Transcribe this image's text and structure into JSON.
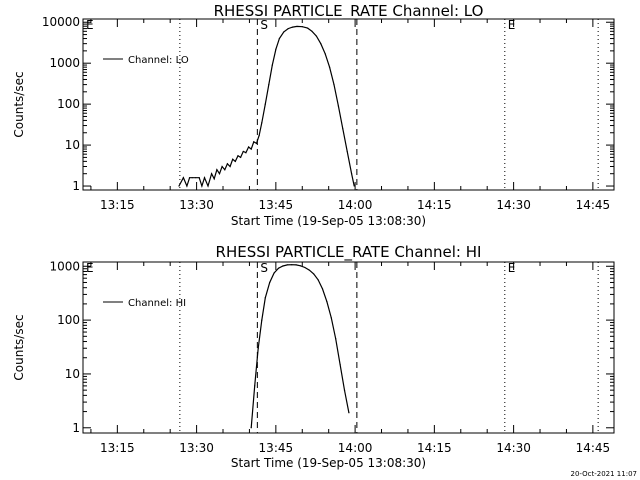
{
  "footer": {
    "timestamp": "20-Oct-2021 11:07"
  },
  "chart_data": [
    {
      "type": "line",
      "title": "RHESSI PARTICLE_RATE Channel: LO",
      "xlabel": "Start Time (19-Sep-05 13:08:30)",
      "ylabel": "Counts/sec",
      "yscale": "log",
      "xlim": [
        "13:08:30",
        "14:49:00"
      ],
      "ylim": [
        0.8,
        12000
      ],
      "xticks": [
        "13:15",
        "13:30",
        "13:45",
        "14:00",
        "14:15",
        "14:30",
        "14:45"
      ],
      "yticks": [
        1,
        10,
        100,
        1000,
        10000
      ],
      "ytick_labels": [
        "1",
        "10",
        "100",
        "1000",
        "10000"
      ],
      "legend_position": "top-left",
      "series": [
        {
          "name": "Channel: LO",
          "x": [
            "13:26:40",
            "13:27:30",
            "13:28:10",
            "13:28:40",
            "13:29:10",
            "13:29:50",
            "13:30:30",
            "13:31:00",
            "13:31:30",
            "13:32:10",
            "13:32:50",
            "13:33:20",
            "13:33:50",
            "13:34:20",
            "13:34:50",
            "13:35:20",
            "13:35:50",
            "13:36:20",
            "13:36:50",
            "13:37:20",
            "13:37:50",
            "13:38:20",
            "13:38:50",
            "13:39:20",
            "13:39:50",
            "13:40:20",
            "13:40:50",
            "13:41:20",
            "13:41:50",
            "13:42:20",
            "13:43:00",
            "13:43:40",
            "13:44:20",
            "13:45:00",
            "13:45:40",
            "13:46:30",
            "13:47:20",
            "13:48:10",
            "13:49:00",
            "13:50:00",
            "13:51:00",
            "13:51:50",
            "13:52:40",
            "13:53:30",
            "13:54:20",
            "13:55:10",
            "13:56:00",
            "13:56:50",
            "13:57:40",
            "13:58:30",
            "13:59:20",
            "13:59:50"
          ],
          "values": [
            1,
            1.6,
            1,
            1.6,
            1.6,
            1.6,
            1.6,
            1,
            1.6,
            1,
            2,
            1.5,
            2.5,
            2,
            3,
            2.5,
            3.5,
            3,
            4.5,
            4,
            5.5,
            5,
            7,
            6.5,
            9,
            8,
            12,
            11,
            17,
            35,
            100,
            300,
            900,
            2200,
            4000,
            5800,
            7000,
            7600,
            7900,
            7800,
            7200,
            6000,
            4600,
            3000,
            1700,
            800,
            300,
            90,
            25,
            7,
            2,
            1
          ]
        }
      ],
      "vertical_markers": [
        {
          "time": "13:41:30",
          "style": "dashed",
          "label": "S"
        },
        {
          "time": "14:00:20",
          "style": "dashed",
          "label": ""
        },
        {
          "time": "13:08:30",
          "style": "dotted",
          "label": "E"
        },
        {
          "time": "13:26:50",
          "style": "dotted",
          "label": ""
        },
        {
          "time": "14:28:20",
          "style": "dotted",
          "label": "E"
        },
        {
          "time": "14:46:00",
          "style": "dotted",
          "label": ""
        }
      ]
    },
    {
      "type": "line",
      "title": "RHESSI PARTICLE_RATE Channel: HI",
      "xlabel": "Start Time (19-Sep-05 13:08:30)",
      "ylabel": "Counts/sec",
      "yscale": "log",
      "xlim": [
        "13:08:30",
        "14:49:00"
      ],
      "ylim": [
        0.8,
        1200
      ],
      "xticks": [
        "13:15",
        "13:30",
        "13:45",
        "14:00",
        "14:15",
        "14:30",
        "14:45"
      ],
      "yticks": [
        1,
        10,
        100,
        1000
      ],
      "ytick_labels": [
        "1",
        "10",
        "100",
        "1000"
      ],
      "legend_position": "top-left",
      "series": [
        {
          "name": "Channel: HI",
          "x": [
            "13:40:20",
            "13:41:00",
            "13:41:40",
            "13:42:20",
            "13:43:00",
            "13:43:50",
            "13:44:40",
            "13:45:30",
            "13:46:20",
            "13:47:10",
            "13:48:00",
            "13:48:50",
            "13:49:40",
            "13:50:30",
            "13:51:20",
            "13:52:10",
            "13:53:00",
            "13:53:50",
            "13:54:40",
            "13:55:30",
            "13:56:20",
            "13:57:10",
            "13:58:00",
            "13:58:50"
          ],
          "values": [
            1,
            6,
            30,
            100,
            260,
            500,
            750,
            920,
            1010,
            1060,
            1070,
            1060,
            1020,
            950,
            850,
            720,
            560,
            380,
            220,
            110,
            45,
            15,
            5,
            1.9
          ]
        }
      ],
      "vertical_markers": [
        {
          "time": "13:41:30",
          "style": "dashed",
          "label": "S"
        },
        {
          "time": "14:00:20",
          "style": "dashed",
          "label": ""
        },
        {
          "time": "13:08:30",
          "style": "dotted",
          "label": "E"
        },
        {
          "time": "13:26:50",
          "style": "dotted",
          "label": ""
        },
        {
          "time": "14:28:20",
          "style": "dotted",
          "label": "E"
        },
        {
          "time": "14:46:00",
          "style": "dotted",
          "label": ""
        }
      ]
    }
  ]
}
